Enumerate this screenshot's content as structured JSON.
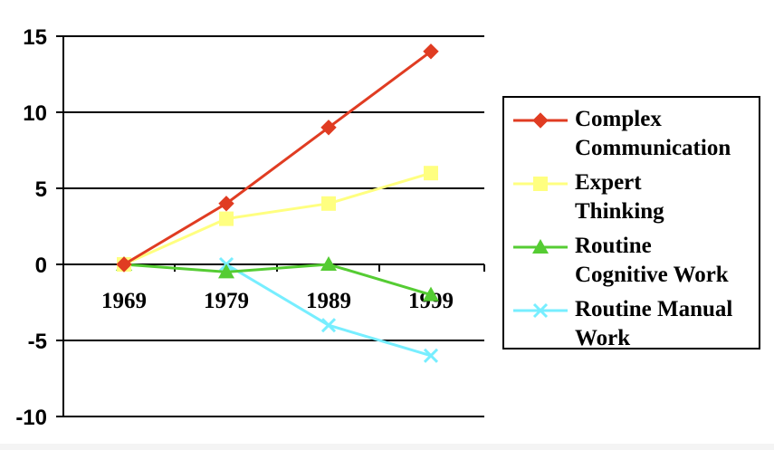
{
  "chart_data": {
    "type": "line",
    "categories": [
      "1969",
      "1979",
      "1989",
      "1999"
    ],
    "ylim": [
      -10,
      15
    ],
    "yticks": [
      15,
      10,
      5,
      0,
      -5,
      -10
    ],
    "grid": true,
    "legend_position": "right",
    "series": [
      {
        "name": "Complex Communication",
        "legend_label": "Complex\nCommunication",
        "values": [
          0,
          4,
          9,
          14
        ],
        "color": "#e03c22",
        "marker": "diamond"
      },
      {
        "name": "Expert Thinking",
        "legend_label": "Expert\nThinking",
        "values": [
          0,
          3,
          4,
          6
        ],
        "color": "#ffff80",
        "marker": "square"
      },
      {
        "name": "Routine Cognitive Work",
        "legend_label": "Routine\nCognitive Work",
        "values": [
          0,
          -0.5,
          0,
          -2
        ],
        "color": "#55cc33",
        "marker": "triangle"
      },
      {
        "name": "Routine Manual Work",
        "legend_label": "Routine Manual\nWork",
        "values": [
          null,
          0,
          -4,
          -6
        ],
        "color": "#77eeff",
        "marker": "x"
      }
    ]
  }
}
